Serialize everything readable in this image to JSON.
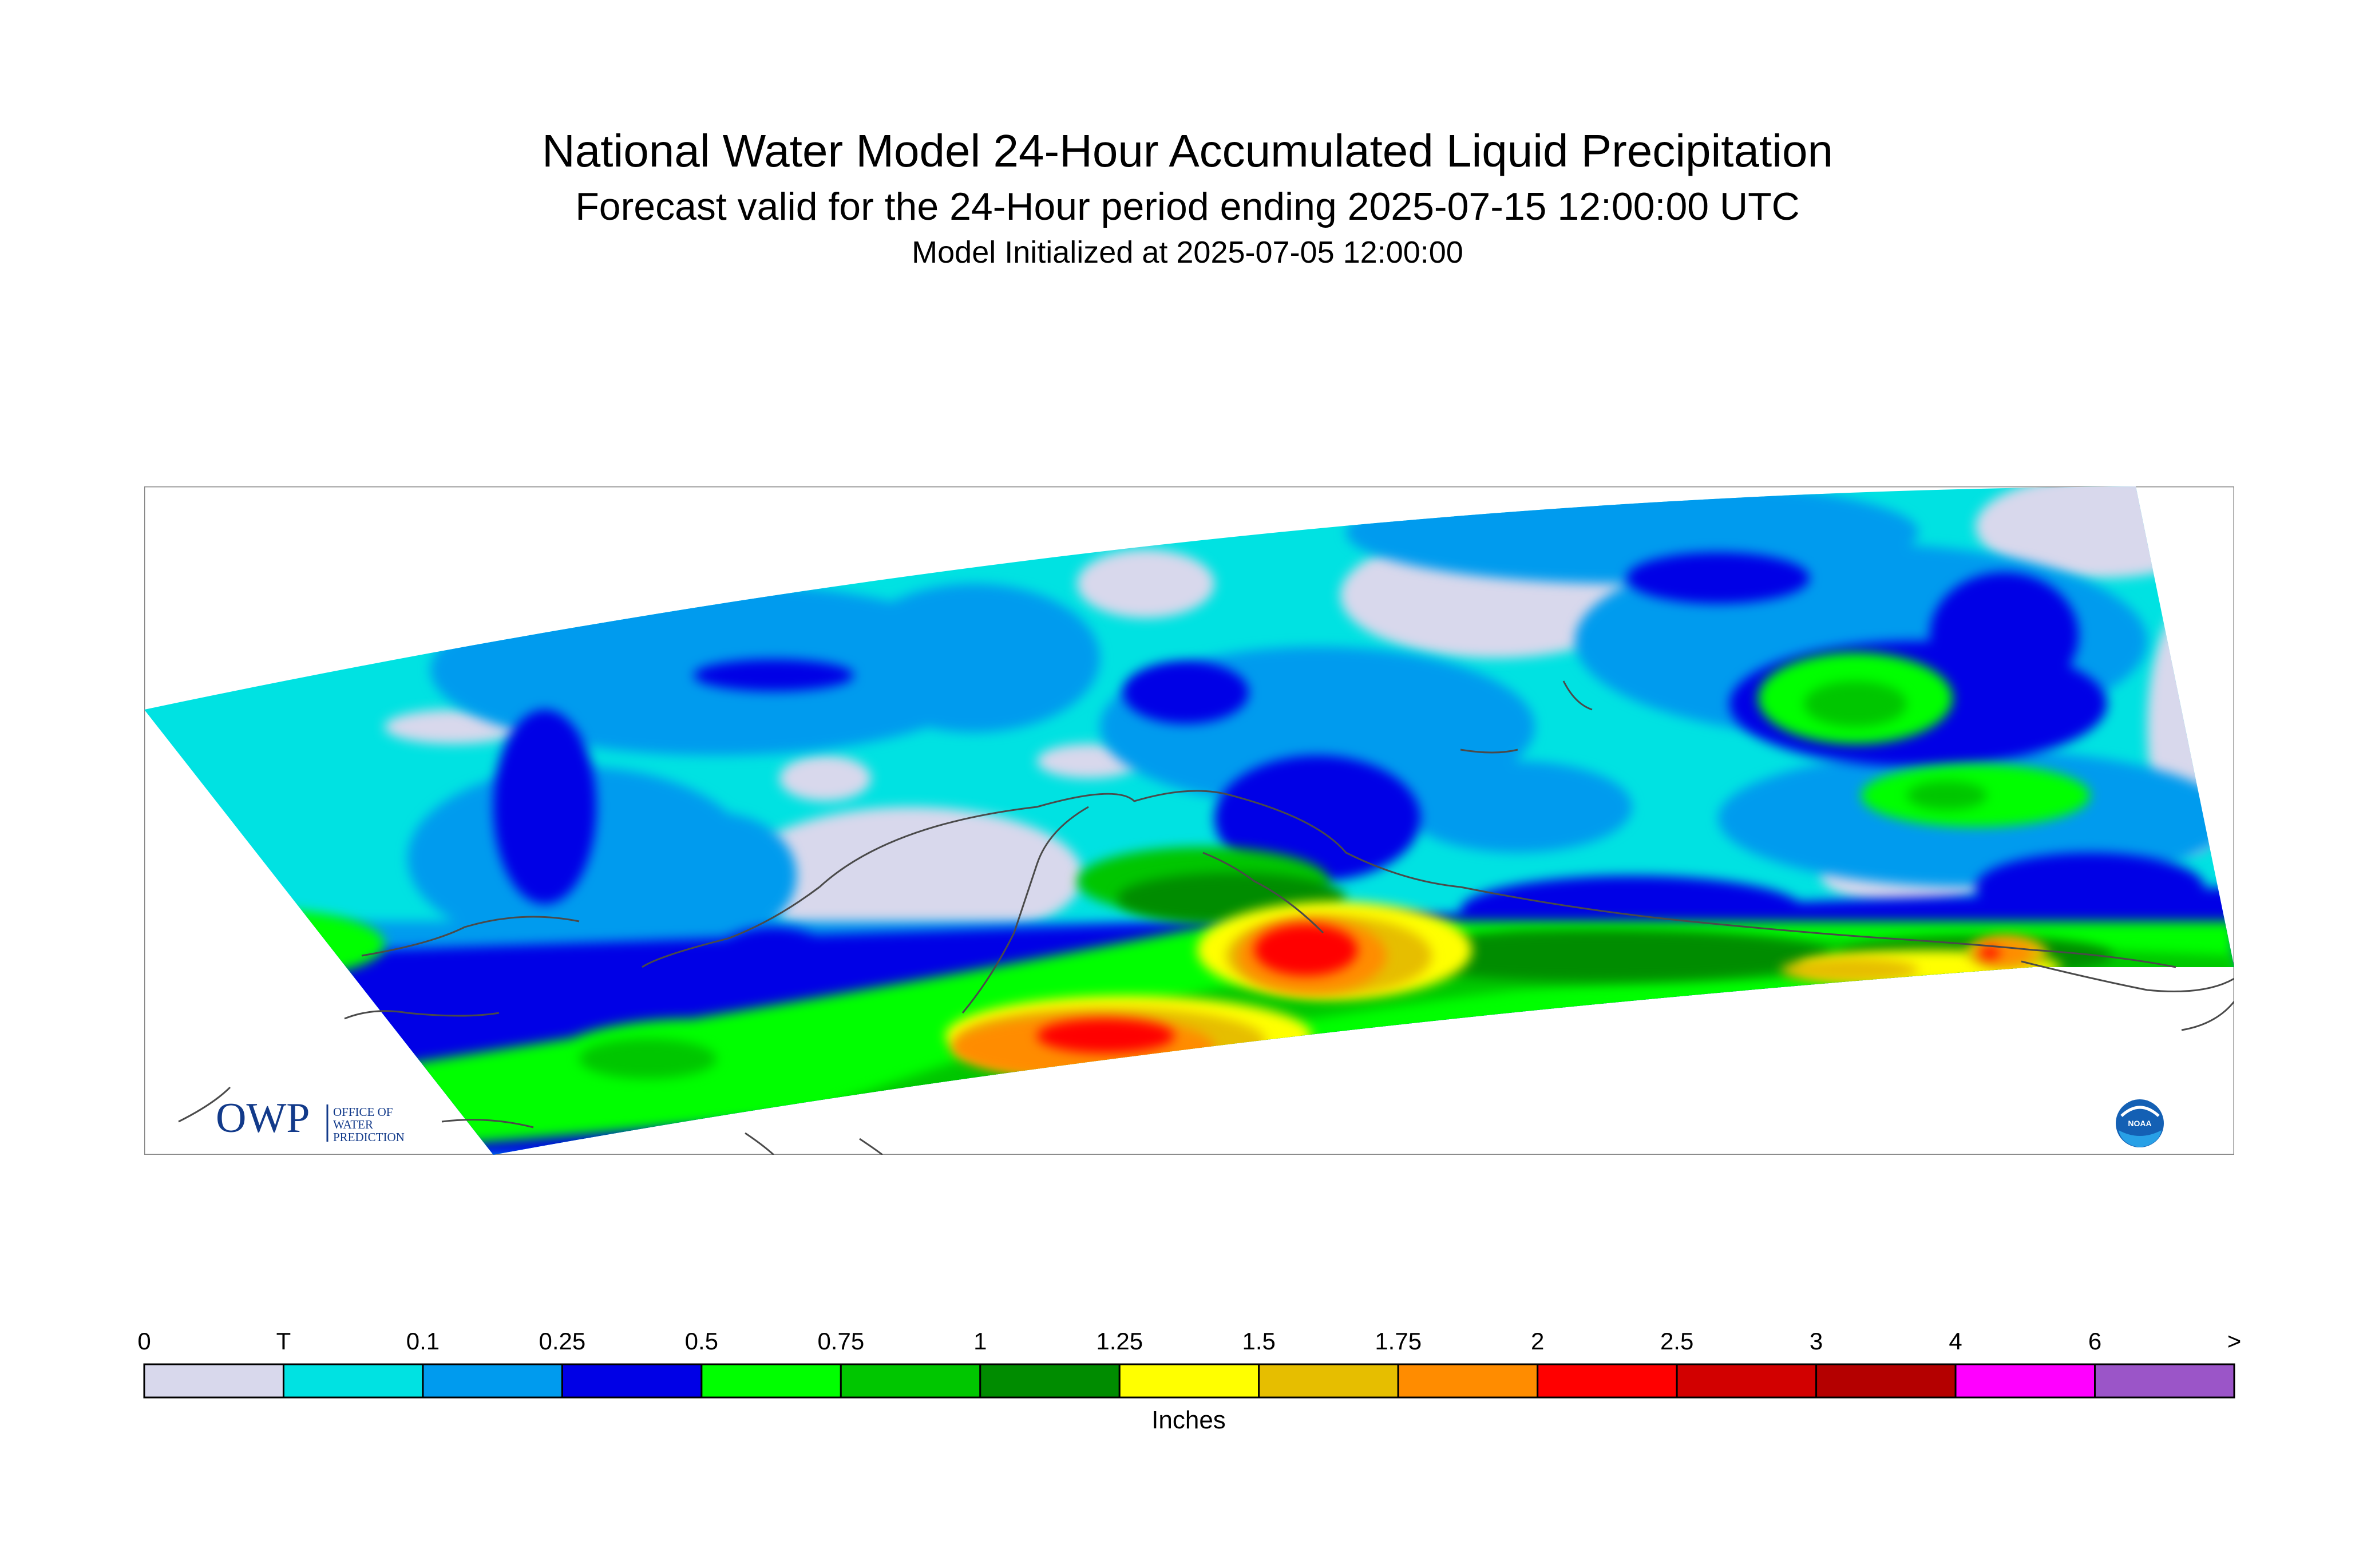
{
  "title": "National Water Model 24-Hour Accumulated Liquid Precipitation",
  "subtitle": "Forecast valid for the 24-Hour period ending 2025-07-15 12:00:00 UTC",
  "init_line": "Model Initialized at 2025-07-05 12:00:00",
  "logos": {
    "owp_text": "OWP",
    "owp_sub": [
      "OFFICE OF",
      "WATER",
      "PREDICTION"
    ],
    "noaa_text": "NOAA"
  },
  "legend": {
    "unit_label": "Inches",
    "tick_labels": [
      "0",
      "T",
      "0.1",
      "0.25",
      "0.5",
      "0.75",
      "1",
      "1.25",
      "1.5",
      "1.75",
      "2",
      "2.5",
      "3",
      "4",
      "6",
      ">"
    ],
    "colors": [
      "#d8d8ec",
      "#00e2e2",
      "#009bee",
      "#0000e6",
      "#00ff00",
      "#00c600",
      "#008c00",
      "#ffff00",
      "#e6be00",
      "#ff8c00",
      "#ff0000",
      "#d20000",
      "#b40000",
      "#ff00ff",
      "#9b55c8"
    ]
  },
  "map": {
    "background_color": "#d8d8ec",
    "coastline_color": "#4a4a4a"
  }
}
